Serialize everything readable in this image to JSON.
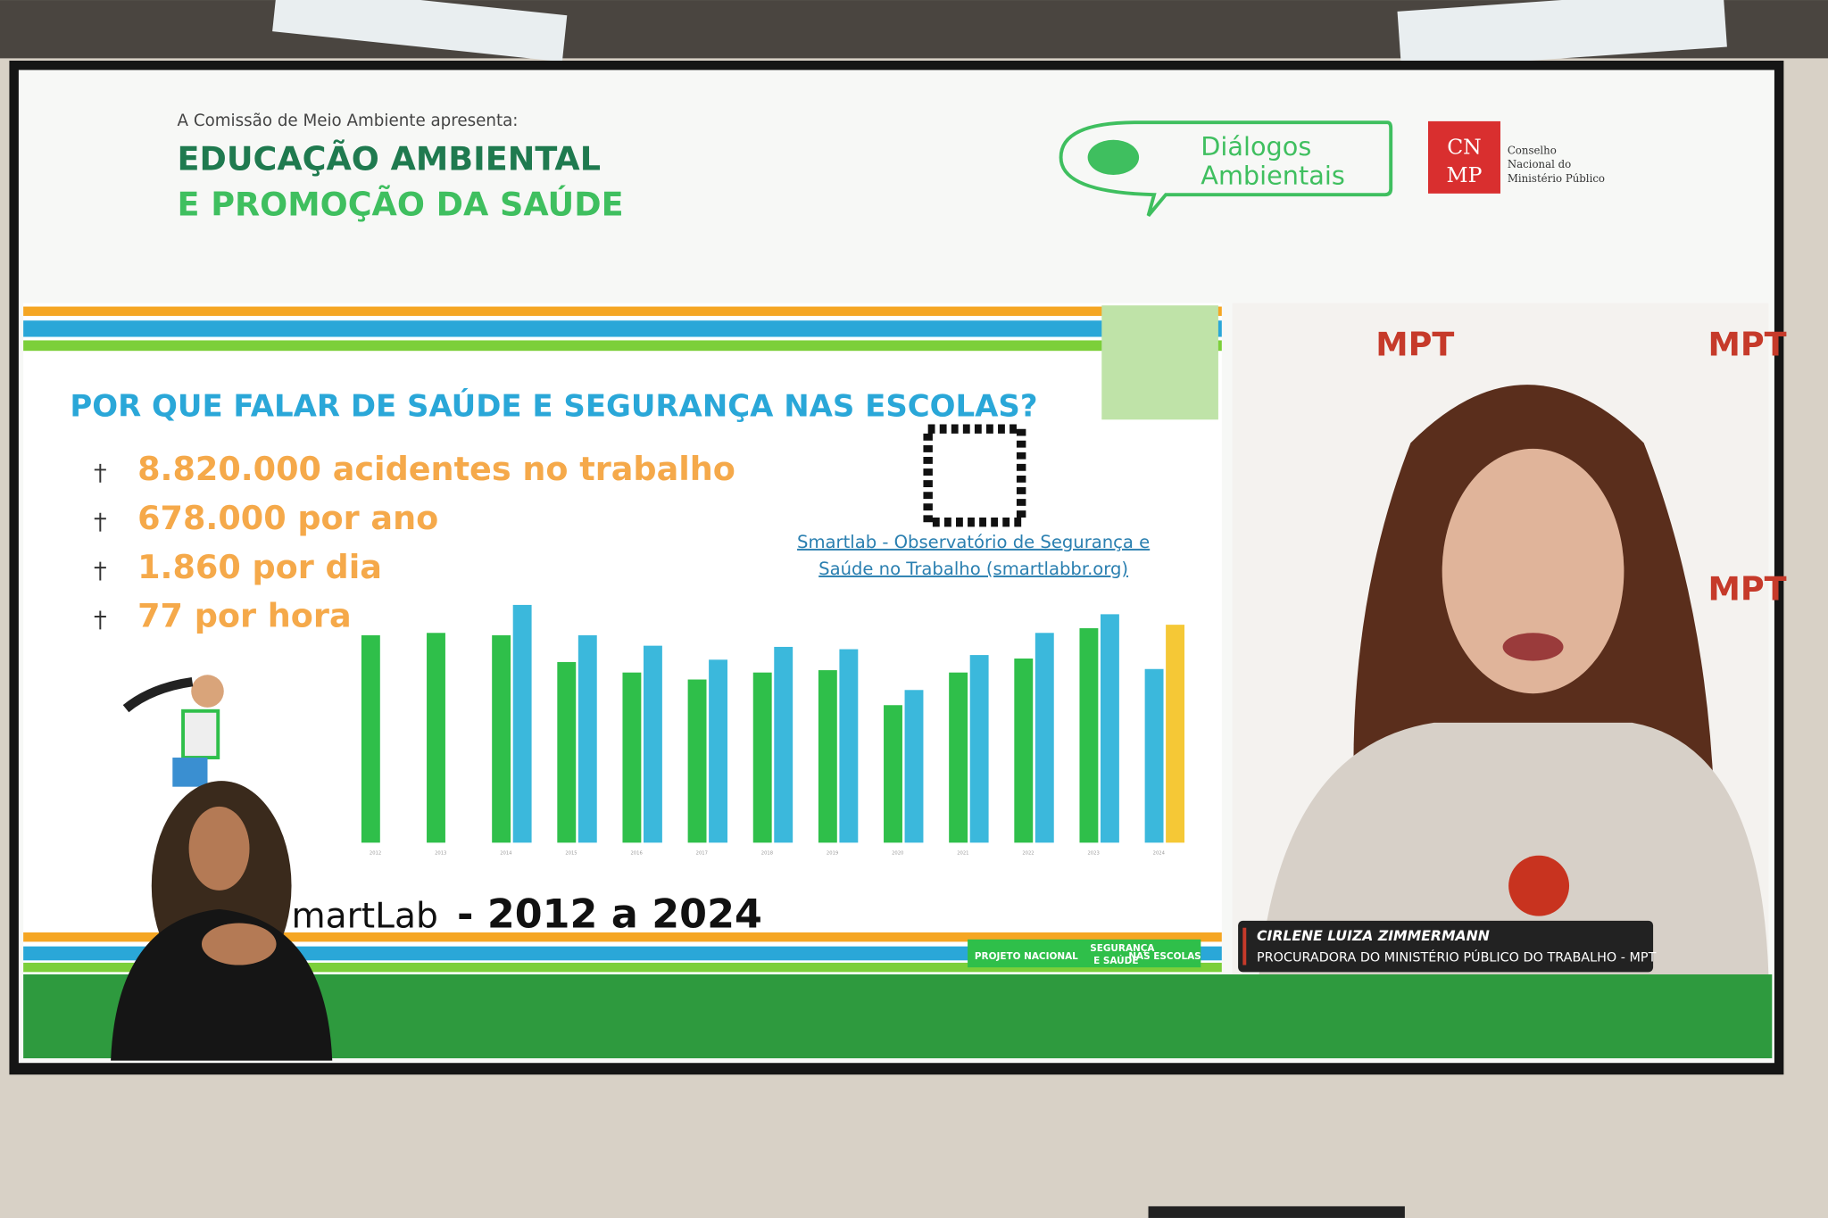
{
  "header": {
    "intro": "A Comissão de Meio Ambiente apresenta:",
    "title_line1": "EDUCAÇÃO AMBIENTAL",
    "title_line2": "E PROMOÇÃO DA SAÚDE"
  },
  "logos": {
    "dialogos_line1": "Diálogos",
    "dialogos_line2": "Ambientais",
    "cnmp_abbr_top": "CN",
    "cnmp_abbr_bottom": "MP",
    "cnmp_line1": "Conselho",
    "cnmp_line2": "Nacional do",
    "cnmp_line3": "Ministério Público"
  },
  "slide": {
    "question": "POR QUE FALAR DE SAÚDE E SEGURANÇA NAS ESCOLAS?",
    "bullets": [
      "8.820.000 acidentes no trabalho",
      "678.000 por ano",
      "1.860 por dia",
      "77 por hora"
    ],
    "link_line1": "Smartlab - Observatório de Segurança e",
    "link_line2": "Saúde no Trabalho (smartlabbr.org)",
    "footer_brand": "martLab",
    "footer_years": "- 2012 a 2024",
    "banner": [
      "PROJETO NACIONAL",
      "SEGURANÇA",
      "E SAÚDE",
      "NAS ESCOLAS"
    ]
  },
  "video": {
    "watermark": "MPT",
    "name": "CIRLENE LUIZA ZIMMERMANN",
    "role": "PROCURADORA DO MINISTÉRIO PÚBLICO DO TRABALHO - MPT"
  },
  "chart_data": {
    "type": "bar",
    "categories": [
      "2012",
      "2013",
      "2014",
      "2015",
      "2016",
      "2017",
      "2018",
      "2019",
      "2020",
      "2021",
      "2022",
      "2023",
      "2024"
    ],
    "series": [
      {
        "color": "#2fbf4a",
        "values": [
          712000,
          720000,
          712000,
          620000,
          584000,
          560000,
          584000,
          592000,
          472000,
          584000,
          632000,
          736000,
          null
        ]
      },
      {
        "color": "#3bb8dc",
        "values": [
          null,
          null,
          816000,
          712000,
          676000,
          628000,
          672000,
          664000,
          524000,
          644000,
          720000,
          784000,
          596000
        ]
      },
      {
        "color": "#f5c836",
        "values": [
          null,
          null,
          null,
          null,
          null,
          null,
          null,
          null,
          null,
          null,
          null,
          null,
          748000
        ]
      }
    ]
  }
}
